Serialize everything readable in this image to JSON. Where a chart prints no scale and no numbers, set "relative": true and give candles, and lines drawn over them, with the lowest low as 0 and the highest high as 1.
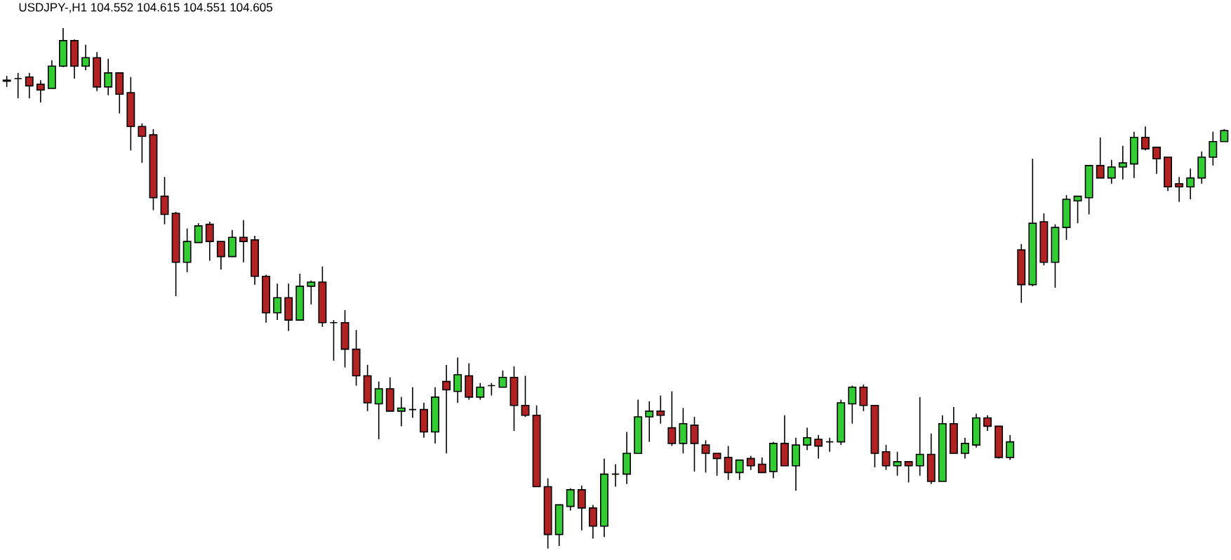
{
  "chart_data": {
    "type": "candlestick",
    "title": "USDJPY-,H1 104.552 104.615 104.551 104.605",
    "relative": true,
    "categories": [
      null,
      null,
      null,
      null,
      null,
      null,
      null,
      null,
      null,
      null,
      null,
      null,
      null,
      null,
      null,
      null,
      null,
      null,
      null,
      null,
      null,
      null,
      null,
      null,
      null,
      null,
      null,
      null,
      null,
      null,
      null,
      null,
      null,
      null,
      null,
      null,
      null,
      null,
      null,
      null,
      null,
      null,
      null,
      null,
      null,
      null,
      null,
      null,
      null,
      null,
      null,
      null,
      null,
      null,
      null,
      null,
      null,
      null,
      null,
      null,
      null,
      null,
      null,
      null,
      null,
      null,
      null,
      null,
      null,
      null,
      null,
      null,
      null,
      null,
      null,
      null,
      null,
      null,
      null,
      null,
      null,
      null,
      null,
      null,
      null,
      null,
      null,
      null,
      null,
      null,
      null,
      null,
      null,
      null,
      null,
      null,
      null,
      null,
      null,
      null,
      null,
      null,
      null,
      null,
      null,
      null,
      null,
      null,
      null
    ],
    "ohlc": [
      [
        0.9,
        0.908,
        0.887,
        0.898
      ],
      [
        0.903,
        0.914,
        0.865,
        0.903
      ],
      [
        0.906,
        0.914,
        0.865,
        0.889
      ],
      [
        0.892,
        0.9,
        0.857,
        0.881
      ],
      [
        0.884,
        0.938,
        0.884,
        0.927
      ],
      [
        0.927,
        1,
        0.925,
        0.976
      ],
      [
        0.976,
        0.978,
        0.903,
        0.927
      ],
      [
        0.927,
        0.968,
        0.919,
        0.943
      ],
      [
        0.943,
        0.954,
        0.879,
        0.887
      ],
      [
        0.887,
        0.941,
        0.871,
        0.914
      ],
      [
        0.914,
        0.914,
        0.836,
        0.873
      ],
      [
        0.876,
        0.906,
        0.765,
        0.811
      ],
      [
        0.811,
        0.817,
        0.741,
        0.792
      ],
      [
        0.795,
        0.806,
        0.65,
        0.674
      ],
      [
        0.677,
        0.714,
        0.623,
        0.642
      ],
      [
        0.644,
        0.647,
        0.485,
        0.55
      ],
      [
        0.55,
        0.615,
        0.531,
        0.59
      ],
      [
        0.588,
        0.625,
        0.588,
        0.62
      ],
      [
        0.623,
        0.628,
        0.553,
        0.59
      ],
      [
        0.59,
        0.59,
        0.536,
        0.561
      ],
      [
        0.561,
        0.612,
        0.561,
        0.598
      ],
      [
        0.598,
        0.631,
        0.55,
        0.59
      ],
      [
        0.593,
        0.601,
        0.507,
        0.523
      ],
      [
        0.523,
        0.526,
        0.434,
        0.453
      ],
      [
        0.453,
        0.509,
        0.439,
        0.482
      ],
      [
        0.482,
        0.509,
        0.418,
        0.439
      ],
      [
        0.439,
        0.528,
        0.439,
        0.504
      ],
      [
        0.504,
        0.515,
        0.469,
        0.512
      ],
      [
        0.512,
        0.542,
        0.426,
        0.434
      ],
      [
        0.434,
        0.439,
        0.361,
        0.434
      ],
      [
        0.434,
        0.458,
        0.348,
        0.383
      ],
      [
        0.383,
        0.42,
        0.313,
        0.332
      ],
      [
        0.332,
        0.353,
        0.264,
        0.28
      ],
      [
        0.278,
        0.321,
        0.21,
        0.307
      ],
      [
        0.307,
        0.329,
        0.264,
        0.264
      ],
      [
        0.264,
        0.291,
        0.235,
        0.27
      ],
      [
        0.267,
        0.31,
        0.251,
        0.267
      ],
      [
        0.267,
        0.28,
        0.213,
        0.224
      ],
      [
        0.224,
        0.31,
        0.202,
        0.291
      ],
      [
        0.321,
        0.353,
        0.183,
        0.305
      ],
      [
        0.302,
        0.367,
        0.28,
        0.334
      ],
      [
        0.332,
        0.356,
        0.286,
        0.291
      ],
      [
        0.291,
        0.318,
        0.286,
        0.31
      ],
      [
        0.313,
        0.318,
        0.294,
        0.313
      ],
      [
        0.31,
        0.342,
        0.31,
        0.329
      ],
      [
        0.329,
        0.35,
        0.226,
        0.275
      ],
      [
        0.275,
        0.332,
        0.253,
        0.256
      ],
      [
        0.256,
        0.275,
        0.119,
        0.119
      ],
      [
        0.119,
        0.135,
        0,
        0.027
      ],
      [
        0.027,
        0.084,
        0.005,
        0.084
      ],
      [
        0.081,
        0.116,
        0.073,
        0.113
      ],
      [
        0.113,
        0.121,
        0.035,
        0.078
      ],
      [
        0.078,
        0.084,
        0.019,
        0.043
      ],
      [
        0.043,
        0.173,
        0.022,
        0.143
      ],
      [
        0.143,
        0.162,
        0.119,
        0.143
      ],
      [
        0.143,
        0.224,
        0.124,
        0.183
      ],
      [
        0.183,
        0.286,
        0.183,
        0.253
      ],
      [
        0.253,
        0.283,
        0.205,
        0.264
      ],
      [
        0.264,
        0.294,
        0.24,
        0.256
      ],
      [
        0.232,
        0.302,
        0.197,
        0.202
      ],
      [
        0.202,
        0.27,
        0.183,
        0.24
      ],
      [
        0.237,
        0.253,
        0.148,
        0.202
      ],
      [
        0.199,
        0.208,
        0.146,
        0.183
      ],
      [
        0.183,
        0.183,
        0.14,
        0.173
      ],
      [
        0.175,
        0.197,
        0.132,
        0.146
      ],
      [
        0.146,
        0.17,
        0.132,
        0.17
      ],
      [
        0.173,
        0.178,
        0.151,
        0.159
      ],
      [
        0.162,
        0.175,
        0.146,
        0.146
      ],
      [
        0.148,
        0.205,
        0.135,
        0.202
      ],
      [
        0.202,
        0.256,
        0.159,
        0.159
      ],
      [
        0.159,
        0.213,
        0.111,
        0.199
      ],
      [
        0.199,
        0.232,
        0.189,
        0.213
      ],
      [
        0.21,
        0.218,
        0.173,
        0.197
      ],
      [
        0.205,
        0.213,
        0.186,
        0.205
      ],
      [
        0.205,
        0.286,
        0.199,
        0.28
      ],
      [
        0.278,
        0.313,
        0.24,
        0.31
      ],
      [
        0.31,
        0.315,
        0.264,
        0.275
      ],
      [
        0.275,
        0.275,
        0.156,
        0.183
      ],
      [
        0.186,
        0.199,
        0.151,
        0.159
      ],
      [
        0.159,
        0.186,
        0.14,
        0.167
      ],
      [
        0.167,
        0.167,
        0.127,
        0.159
      ],
      [
        0.159,
        0.291,
        0.14,
        0.181
      ],
      [
        0.181,
        0.221,
        0.124,
        0.129
      ],
      [
        0.129,
        0.256,
        0.129,
        0.24
      ],
      [
        0.24,
        0.272,
        0.183,
        0.183
      ],
      [
        0.183,
        0.213,
        0.173,
        0.202
      ],
      [
        0.199,
        0.259,
        0.194,
        0.251
      ],
      [
        0.251,
        0.256,
        0.226,
        0.235
      ],
      [
        0.235,
        0.235,
        0.173,
        0.175
      ],
      [
        0.175,
        0.218,
        0.17,
        0.205
      ],
      [
        0.574,
        0.585,
        0.472,
        0.507
      ],
      [
        0.507,
        0.749,
        0.504,
        0.625
      ],
      [
        0.628,
        0.644,
        0.544,
        0.55
      ],
      [
        0.55,
        0.623,
        0.501,
        0.617
      ],
      [
        0.617,
        0.679,
        0.593,
        0.671
      ],
      [
        0.668,
        0.677,
        0.625,
        0.677
      ],
      [
        0.674,
        0.736,
        0.642,
        0.736
      ],
      [
        0.736,
        0.79,
        0.712,
        0.712
      ],
      [
        0.712,
        0.747,
        0.701,
        0.733
      ],
      [
        0.733,
        0.774,
        0.709,
        0.741
      ],
      [
        0.739,
        0.801,
        0.712,
        0.79
      ],
      [
        0.79,
        0.811,
        0.765,
        0.768
      ],
      [
        0.771,
        0.771,
        0.72,
        0.749
      ],
      [
        0.752,
        0.752,
        0.687,
        0.695
      ],
      [
        0.701,
        0.714,
        0.666,
        0.695
      ],
      [
        0.695,
        0.73,
        0.671,
        0.712
      ],
      [
        0.712,
        0.763,
        0.701,
        0.752
      ],
      [
        0.752,
        0.801,
        0.736,
        0.782
      ],
      [
        0.782,
        0.806,
        0.782,
        0.803
      ]
    ],
    "colors": [
      "#b22222",
      "#000000",
      "#b22222",
      "#b22222",
      "#32cd32",
      "#32cd32",
      "#b22222",
      "#32cd32",
      "#b22222",
      "#32cd32",
      "#b22222",
      "#b22222",
      "#b22222",
      "#b22222",
      "#b22222",
      "#b22222",
      "#32cd32",
      "#32cd32",
      "#b22222",
      "#b22222",
      "#32cd32",
      "#b22222",
      "#b22222",
      "#b22222",
      "#32cd32",
      "#b22222",
      "#32cd32",
      "#32cd32",
      "#b22222",
      "#000000",
      "#b22222",
      "#b22222",
      "#b22222",
      "#32cd32",
      "#b22222",
      "#32cd32",
      "#000000",
      "#b22222",
      "#32cd32",
      "#b22222",
      "#32cd32",
      "#b22222",
      "#32cd32",
      "#000000",
      "#32cd32",
      "#b22222",
      "#b22222",
      "#b22222",
      "#b22222",
      "#32cd32",
      "#32cd32",
      "#b22222",
      "#b22222",
      "#32cd32",
      "#000000",
      "#32cd32",
      "#32cd32",
      "#32cd32",
      "#b22222",
      "#b22222",
      "#32cd32",
      "#b22222",
      "#b22222",
      "#b22222",
      "#b22222",
      "#32cd32",
      "#b22222",
      "#b22222",
      "#32cd32",
      "#b22222",
      "#32cd32",
      "#32cd32",
      "#b22222",
      "#000000",
      "#32cd32",
      "#32cd32",
      "#b22222",
      "#b22222",
      "#b22222",
      "#32cd32",
      "#b22222",
      "#32cd32",
      "#b22222",
      "#32cd32",
      "#b22222",
      "#32cd32",
      "#32cd32",
      "#b22222",
      "#b22222",
      "#32cd32",
      "#b22222",
      "#32cd32",
      "#b22222",
      "#32cd32",
      "#32cd32",
      "#32cd32",
      "#32cd32",
      "#b22222",
      "#32cd32",
      "#32cd32",
      "#32cd32",
      "#b22222",
      "#b22222",
      "#b22222",
      "#b22222",
      "#32cd32",
      "#32cd32",
      "#32cd32",
      "#32cd32"
    ]
  }
}
